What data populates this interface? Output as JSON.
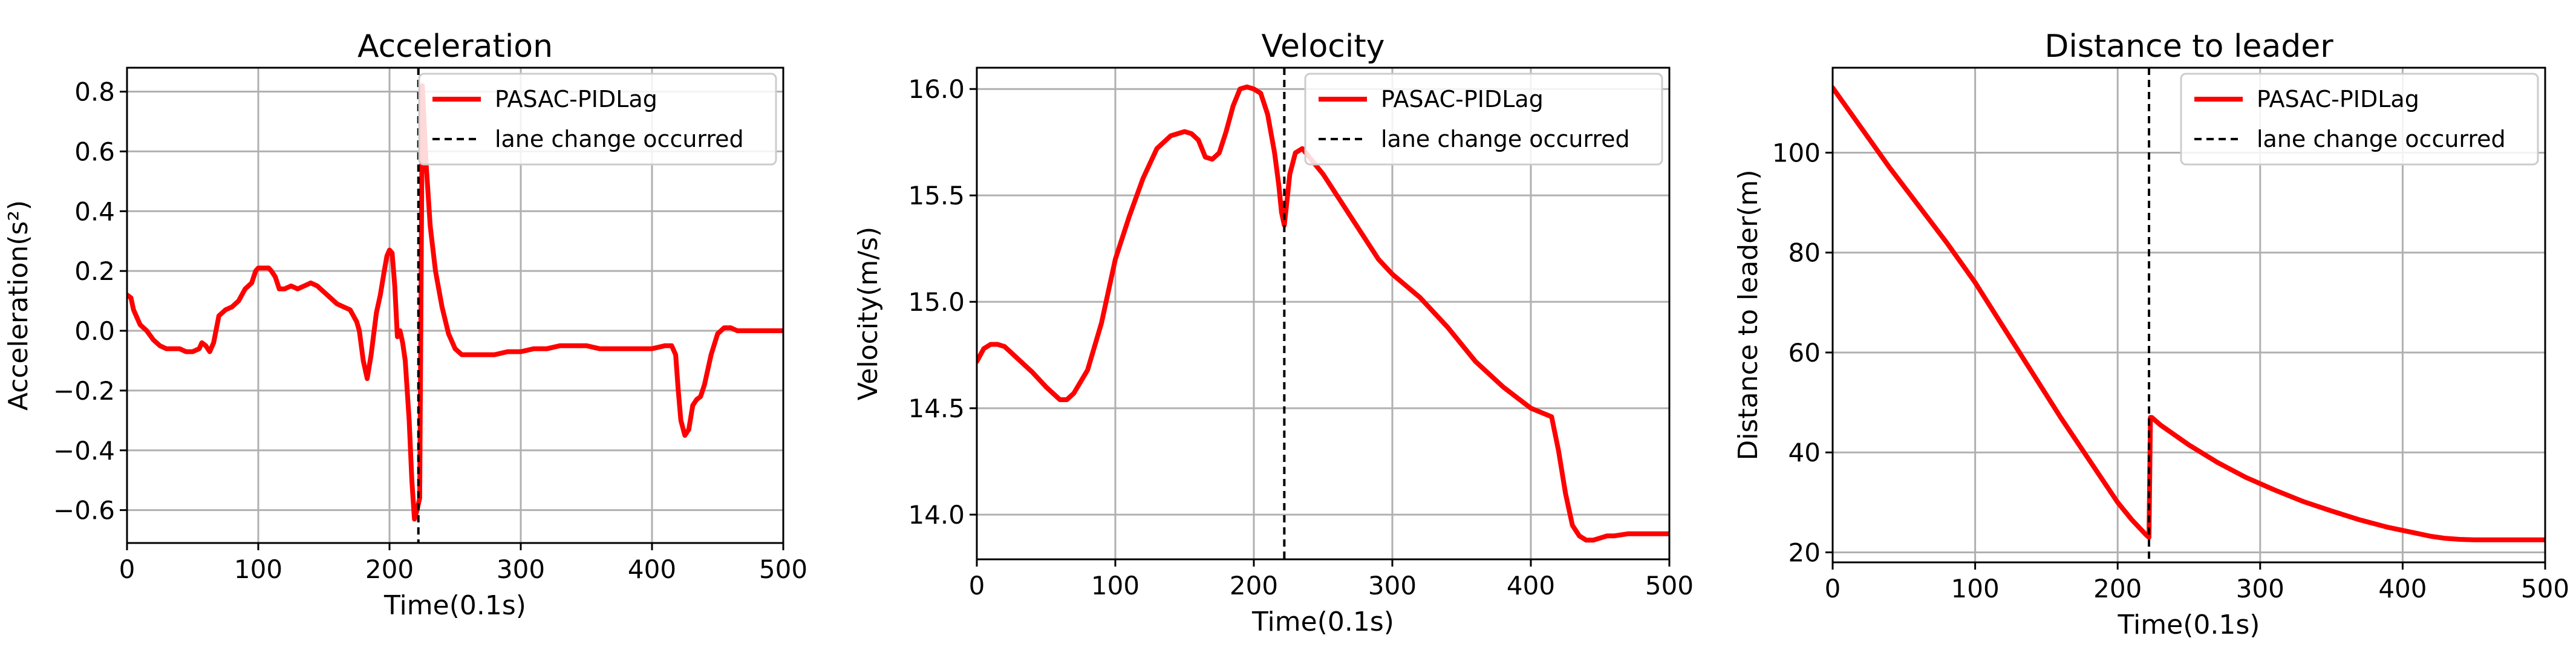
{
  "chart_data": [
    {
      "type": "line",
      "title": "Acceleration",
      "xlabel": "Time(0.1s)",
      "ylabel": "Acceleration(s²)",
      "xlim": [
        0,
        500
      ],
      "ylim": [
        -0.71,
        0.88
      ],
      "x_ticks": [
        0,
        100,
        200,
        300,
        400,
        500
      ],
      "x_tick_labels": [
        "0",
        "100",
        "200",
        "300",
        "400",
        "500"
      ],
      "y_ticks": [
        -0.6,
        -0.4,
        -0.2,
        0.0,
        0.2,
        0.4,
        0.6,
        0.8
      ],
      "y_tick_labels": [
        "−0.6",
        "−0.4",
        "−0.2",
        "0.0",
        "0.2",
        "0.4",
        "0.6",
        "0.8"
      ],
      "grid": true,
      "legend_position": "top-right",
      "series": [
        {
          "name": "PASAC-PIDLag",
          "color": "#ff0000",
          "x": [
            0,
            3,
            5,
            10,
            15,
            20,
            25,
            30,
            35,
            40,
            45,
            50,
            55,
            57,
            60,
            63,
            66,
            70,
            75,
            80,
            85,
            90,
            95,
            98,
            100,
            103,
            108,
            110,
            113,
            116,
            120,
            125,
            130,
            135,
            140,
            145,
            150,
            155,
            160,
            165,
            170,
            175,
            177,
            180,
            183,
            186,
            190,
            193,
            196,
            198,
            200,
            202,
            204,
            206,
            208,
            210,
            212,
            215,
            217,
            219,
            221,
            222,
            223,
            225,
            228,
            231,
            235,
            240,
            245,
            250,
            255,
            260,
            270,
            280,
            290,
            300,
            310,
            320,
            330,
            340,
            350,
            360,
            370,
            380,
            390,
            400,
            410,
            415,
            418,
            420,
            422,
            425,
            428,
            431,
            434,
            437,
            440,
            445,
            450,
            455,
            460,
            465,
            470,
            480,
            490,
            500
          ],
          "y": [
            0.12,
            0.11,
            0.07,
            0.02,
            0.0,
            -0.03,
            -0.05,
            -0.06,
            -0.06,
            -0.06,
            -0.07,
            -0.07,
            -0.06,
            -0.04,
            -0.05,
            -0.07,
            -0.04,
            0.05,
            0.07,
            0.08,
            0.1,
            0.14,
            0.16,
            0.2,
            0.21,
            0.21,
            0.21,
            0.2,
            0.18,
            0.14,
            0.14,
            0.15,
            0.14,
            0.15,
            0.16,
            0.15,
            0.13,
            0.11,
            0.09,
            0.08,
            0.07,
            0.03,
            0.0,
            -0.1,
            -0.16,
            -0.08,
            0.06,
            0.12,
            0.2,
            0.25,
            0.27,
            0.26,
            0.15,
            -0.02,
            0.0,
            -0.04,
            -0.1,
            -0.3,
            -0.5,
            -0.63,
            -0.6,
            -0.58,
            -0.56,
            0.82,
            0.55,
            0.35,
            0.2,
            0.08,
            -0.01,
            -0.06,
            -0.08,
            -0.08,
            -0.08,
            -0.08,
            -0.07,
            -0.07,
            -0.06,
            -0.06,
            -0.05,
            -0.05,
            -0.05,
            -0.06,
            -0.06,
            -0.06,
            -0.06,
            -0.06,
            -0.05,
            -0.05,
            -0.08,
            -0.2,
            -0.3,
            -0.35,
            -0.33,
            -0.25,
            -0.23,
            -0.22,
            -0.18,
            -0.08,
            -0.01,
            0.01,
            0.01,
            0.0,
            0.0,
            0.0,
            0.0,
            0.0
          ]
        },
        {
          "name": "lane change occurred",
          "color": "#000000",
          "style": "dashed",
          "x_value": 222
        }
      ]
    },
    {
      "type": "line",
      "title": "Velocity",
      "xlabel": "Time(0.1s)",
      "ylabel": "Velocity(m/s)",
      "xlim": [
        0,
        500
      ],
      "ylim": [
        13.79,
        16.1
      ],
      "x_ticks": [
        0,
        100,
        200,
        300,
        400,
        500
      ],
      "x_tick_labels": [
        "0",
        "100",
        "200",
        "300",
        "400",
        "500"
      ],
      "y_ticks": [
        14.0,
        14.5,
        15.0,
        15.5,
        16.0
      ],
      "y_tick_labels": [
        "14.0",
        "14.5",
        "15.0",
        "15.5",
        "16.0"
      ],
      "grid": true,
      "legend_position": "top-right",
      "series": [
        {
          "name": "PASAC-PIDLag",
          "color": "#ff0000",
          "x": [
            0,
            5,
            10,
            15,
            20,
            25,
            30,
            40,
            50,
            60,
            65,
            70,
            80,
            90,
            100,
            110,
            120,
            130,
            140,
            150,
            155,
            160,
            165,
            170,
            175,
            180,
            185,
            190,
            195,
            200,
            205,
            210,
            215,
            218,
            220,
            222,
            224,
            226,
            230,
            235,
            240,
            250,
            260,
            270,
            280,
            290,
            300,
            320,
            340,
            360,
            380,
            400,
            415,
            420,
            425,
            430,
            435,
            440,
            445,
            450,
            455,
            460,
            470,
            480,
            490,
            500
          ],
          "y": [
            14.72,
            14.78,
            14.8,
            14.8,
            14.79,
            14.76,
            14.73,
            14.67,
            14.6,
            14.54,
            14.54,
            14.57,
            14.68,
            14.9,
            15.2,
            15.4,
            15.58,
            15.72,
            15.78,
            15.8,
            15.79,
            15.76,
            15.68,
            15.67,
            15.7,
            15.8,
            15.92,
            16.0,
            16.01,
            16.0,
            15.98,
            15.88,
            15.7,
            15.55,
            15.42,
            15.36,
            15.48,
            15.6,
            15.7,
            15.72,
            15.68,
            15.6,
            15.5,
            15.4,
            15.3,
            15.2,
            15.13,
            15.02,
            14.88,
            14.72,
            14.6,
            14.5,
            14.46,
            14.3,
            14.1,
            13.95,
            13.9,
            13.88,
            13.88,
            13.89,
            13.9,
            13.9,
            13.91,
            13.91,
            13.91,
            13.91
          ]
        },
        {
          "name": "lane change occurred",
          "color": "#000000",
          "style": "dashed",
          "x_value": 222
        }
      ]
    },
    {
      "type": "line",
      "title": "Distance to leader",
      "xlabel": "Time(0.1s)",
      "ylabel": "Distance to leader(m)",
      "xlim": [
        0,
        500
      ],
      "ylim": [
        18,
        117
      ],
      "x_ticks": [
        0,
        100,
        200,
        300,
        400,
        500
      ],
      "x_tick_labels": [
        "0",
        "100",
        "200",
        "300",
        "400",
        "500"
      ],
      "y_ticks": [
        20,
        40,
        60,
        80,
        100
      ],
      "y_tick_labels": [
        "20",
        "40",
        "60",
        "80",
        "100"
      ],
      "grid": true,
      "legend_position": "top-right",
      "series": [
        {
          "name": "PASAC-PIDLag",
          "color": "#ff0000",
          "x": [
            0,
            20,
            40,
            60,
            80,
            100,
            120,
            140,
            160,
            180,
            200,
            210,
            220,
            222,
            223,
            224,
            230,
            250,
            270,
            290,
            310,
            330,
            350,
            370,
            390,
            410,
            420,
            430,
            440,
            450,
            470,
            500
          ],
          "y": [
            113,
            105,
            97,
            89.5,
            82,
            74,
            65,
            56,
            47,
            38.5,
            30,
            26.5,
            23.5,
            23,
            47,
            47,
            45.5,
            41.5,
            38,
            35,
            32.5,
            30.2,
            28.3,
            26.5,
            25,
            23.8,
            23.2,
            22.8,
            22.6,
            22.5,
            22.5,
            22.5
          ]
        },
        {
          "name": "lane change occurred",
          "color": "#000000",
          "style": "dashed",
          "x_value": 222
        }
      ]
    }
  ]
}
